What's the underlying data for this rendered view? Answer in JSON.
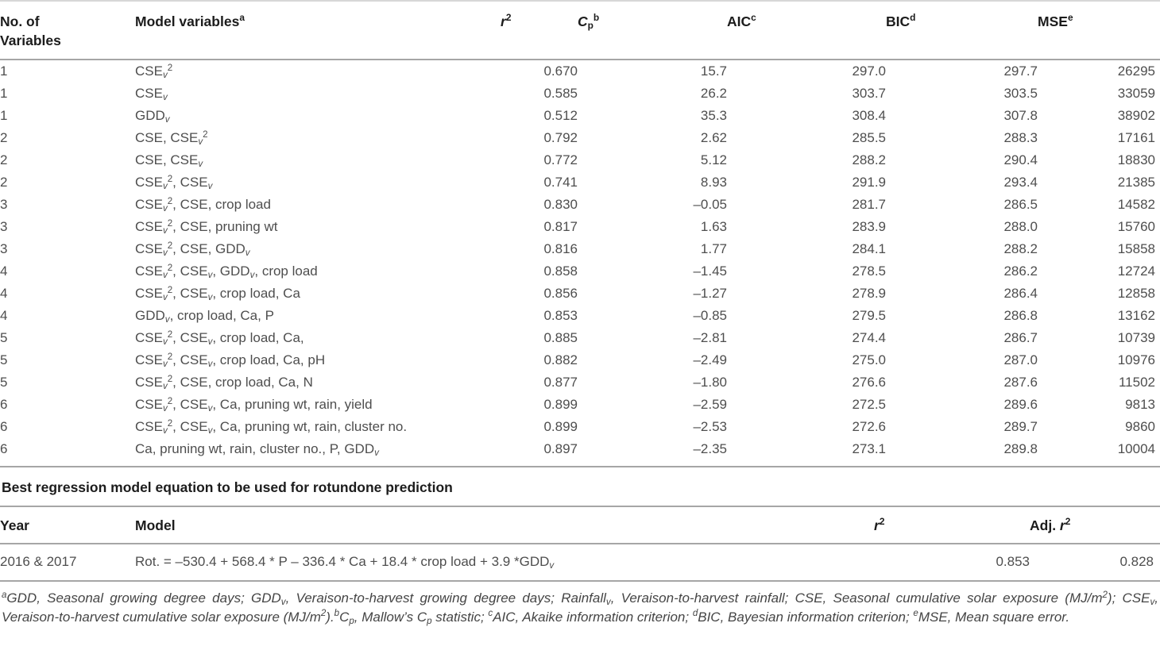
{
  "model_selection_table": {
    "headers": {
      "variables": "No. of\nVariables",
      "model": "Model variables{^a}",
      "r2": "r{^2}",
      "cp": "C{_p}{^b}",
      "aic": "AIC{^c}",
      "bic": "BIC{^d}",
      "mse": "MSE{^e}"
    },
    "rows": [
      {
        "n": "1",
        "model": "CSE{_v}{^2}",
        "r2": "0.670",
        "cp": "15.7",
        "aic": "297.0",
        "bic": "297.7",
        "mse": "26295"
      },
      {
        "n": "1",
        "model": "CSE{_v}",
        "r2": "0.585",
        "cp": "26.2",
        "aic": "303.7",
        "bic": "303.5",
        "mse": "33059"
      },
      {
        "n": "1",
        "model": "GDD{_v}",
        "r2": "0.512",
        "cp": "35.3",
        "aic": "308.4",
        "bic": "307.8",
        "mse": "38902"
      },
      {
        "n": "2",
        "model": "CSE, CSE{_v}{^2}",
        "r2": "0.792",
        "cp": "2.62",
        "aic": "285.5",
        "bic": "288.3",
        "mse": "17161"
      },
      {
        "n": "2",
        "model": "CSE, CSE{_v}",
        "r2": "0.772",
        "cp": "5.12",
        "aic": "288.2",
        "bic": "290.4",
        "mse": "18830"
      },
      {
        "n": "2",
        "model": "CSE{_v}{^2}, CSE{_v}",
        "r2": "0.741",
        "cp": "8.93",
        "aic": "291.9",
        "bic": "293.4",
        "mse": "21385"
      },
      {
        "n": "3",
        "model": "CSE{_v}{^2}, CSE, crop load",
        "r2": "0.830",
        "cp": "–0.05",
        "aic": "281.7",
        "bic": "286.5",
        "mse": "14582"
      },
      {
        "n": "3",
        "model": "CSE{_v}{^2}, CSE, pruning wt",
        "r2": "0.817",
        "cp": "1.63",
        "aic": "283.9",
        "bic": "288.0",
        "mse": "15760"
      },
      {
        "n": "3",
        "model": "CSE{_v}{^2}, CSE, GDD{_v}",
        "r2": "0.816",
        "cp": "1.77",
        "aic": "284.1",
        "bic": "288.2",
        "mse": "15858"
      },
      {
        "n": "4",
        "model": "CSE{_v}{^2}, CSE{_v}, GDD{_v}, crop load",
        "r2": "0.858",
        "cp": "–1.45",
        "aic": "278.5",
        "bic": "286.2",
        "mse": "12724"
      },
      {
        "n": "4",
        "model": "CSE{_v}{^2}, CSE{_v}, crop load, Ca",
        "r2": "0.856",
        "cp": "–1.27",
        "aic": "278.9",
        "bic": "286.4",
        "mse": "12858"
      },
      {
        "n": "4",
        "model": "GDD{_v}, crop load, Ca, P",
        "r2": "0.853",
        "cp": "–0.85",
        "aic": "279.5",
        "bic": "286.8",
        "mse": "13162"
      },
      {
        "n": "5",
        "model": "CSE{_v}{^2}, CSE{_v}, crop load, Ca,",
        "r2": "0.885",
        "cp": "–2.81",
        "aic": "274.4",
        "bic": "286.7",
        "mse": "10739"
      },
      {
        "n": "5",
        "model": "CSE{_v}{^2}, CSE{_v}, crop load, Ca, pH",
        "r2": "0.882",
        "cp": "–2.49",
        "aic": "275.0",
        "bic": "287.0",
        "mse": "10976"
      },
      {
        "n": "5",
        "model": "CSE{_v}{^2}, CSE, crop load, Ca, N",
        "r2": "0.877",
        "cp": "–1.80",
        "aic": "276.6",
        "bic": "287.6",
        "mse": "11502"
      },
      {
        "n": "6",
        "model": "CSE{_v}{^2}, CSE{_v}, Ca, pruning wt, rain, yield",
        "r2": "0.899",
        "cp": "–2.59",
        "aic": "272.5",
        "bic": "289.6",
        "mse": "9813"
      },
      {
        "n": "6",
        "model": "CSE{_v}{^2}, CSE{_v}, Ca, pruning wt, rain, cluster no.",
        "r2": "0.899",
        "cp": "–2.53",
        "aic": "272.6",
        "bic": "289.7",
        "mse": "9860"
      },
      {
        "n": "6",
        "model": "Ca, pruning wt, rain, cluster no., P, GDD{_v}",
        "r2": "0.897",
        "cp": "–2.35",
        "aic": "273.1",
        "bic": "289.8",
        "mse": "10004"
      }
    ]
  },
  "best_model_section": {
    "title": "Best regression model equation to be used for rotundone prediction",
    "headers": {
      "year": "Year",
      "model": "Model",
      "r2": "r{^2}",
      "adj_r2_prefix": "Adj. ",
      "adj_r2_r": "r{^2}"
    },
    "row": {
      "year": "2016 & 2017",
      "model": "Rot. = –530.4 + 568.4 * P – 336.4 * Ca + 18.4 * crop load + 3.9 *GDD{_v}",
      "r2": "0.853",
      "adj_r2": "0.828"
    }
  },
  "footnote": "{^a}GDD, Seasonal growing degree days; GDD{_v}, Veraison-to-harvest growing degree days; Rainfall{_v}, Veraison-to-harvest rainfall; CSE, Seasonal cumulative solar exposure (MJ/m{^2}); CSE{_v}, Veraison-to-harvest cumulative solar exposure (MJ/m{^2}).{^b}C{_p}, Mallow’s C{_p} statistic; {^c}AIC, Akaike information criterion; {^d}BIC, Bayesian information criterion; {^e}MSE, Mean square error.",
  "colors": {
    "heading_text": "#1c1c1c",
    "body_text": "#4e4e4e",
    "rule": "#a6a6a6",
    "rule_light": "#d7d7d7"
  }
}
